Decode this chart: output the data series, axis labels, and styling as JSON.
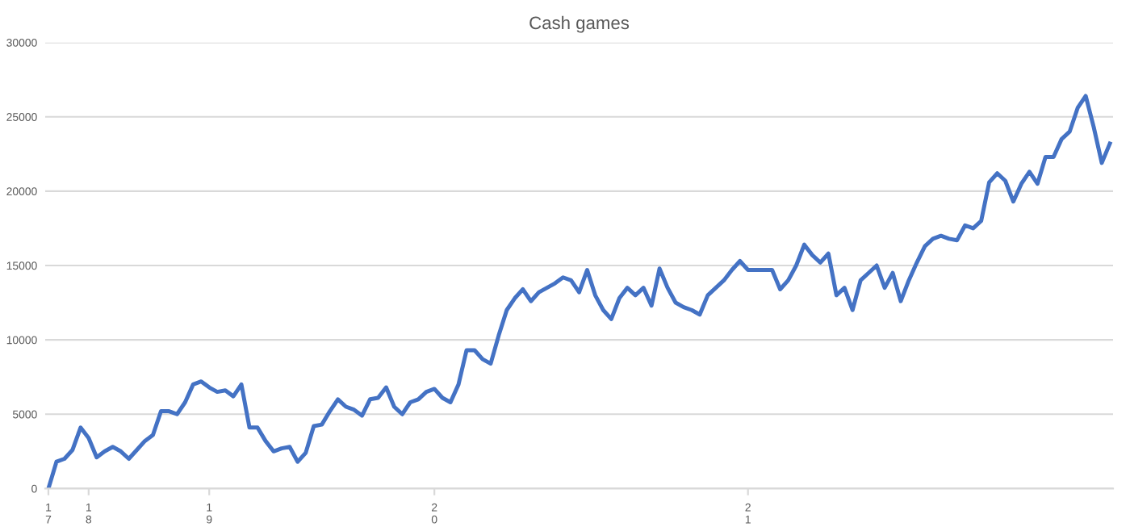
{
  "chart_data": {
    "type": "line",
    "title": "Cash games",
    "categories": [
      "17",
      null,
      null,
      null,
      null,
      "18",
      null,
      null,
      null,
      null,
      null,
      null,
      null,
      null,
      null,
      null,
      null,
      null,
      null,
      null,
      "19",
      null,
      null,
      null,
      null,
      null,
      null,
      null,
      null,
      null,
      null,
      null,
      null,
      null,
      null,
      null,
      null,
      null,
      null,
      null,
      null,
      null,
      null,
      null,
      null,
      null,
      null,
      null,
      "20",
      null,
      null,
      null,
      null,
      null,
      null,
      null,
      null,
      null,
      null,
      null,
      null,
      null,
      null,
      null,
      null,
      null,
      null,
      null,
      null,
      null,
      null,
      null,
      null,
      null,
      null,
      null,
      null,
      null,
      null,
      null,
      null,
      null,
      null,
      null,
      null,
      null,
      null,
      "21",
      null,
      null,
      null,
      null,
      null,
      null,
      null,
      null,
      null,
      null,
      null,
      null,
      null,
      null,
      null,
      null,
      null,
      null,
      null,
      null,
      null,
      null,
      null,
      null,
      null,
      null,
      null,
      null,
      null,
      null,
      null,
      null,
      null,
      null,
      null,
      null,
      null,
      null,
      null,
      null,
      null,
      null,
      null,
      null,
      null
    ],
    "series": [
      {
        "color": "#4472c4",
        "values": [
          0,
          1800,
          2000,
          2600,
          4100,
          3400,
          2100,
          2500,
          2800,
          2500,
          2000,
          2600,
          3200,
          3600,
          5200,
          5200,
          5000,
          5800,
          7000,
          7200,
          6800,
          6500,
          6600,
          6200,
          7000,
          4100,
          4100,
          3200,
          2500,
          2700,
          2800,
          1800,
          2400,
          4200,
          4300,
          5200,
          6000,
          5500,
          5300,
          4900,
          6000,
          6100,
          6800,
          5500,
          5000,
          5800,
          6000,
          6500,
          6700,
          6100,
          5800,
          7000,
          9300,
          9300,
          8700,
          8400,
          10300,
          12000,
          12800,
          13400,
          12600,
          13200,
          13500,
          13800,
          14200,
          14000,
          13200,
          14700,
          13000,
          12000,
          11400,
          12800,
          13500,
          13000,
          13500,
          12300,
          14800,
          13500,
          12500,
          12200,
          12000,
          11700,
          13000,
          13500,
          14000,
          14700,
          15300,
          14700,
          14700,
          14700,
          14700,
          13400,
          14000,
          15000,
          16400,
          15700,
          15200,
          15800,
          13000,
          13500,
          12000,
          14000,
          14500,
          15000,
          13500,
          14500,
          12600,
          14000,
          15200,
          16300,
          16800,
          17000,
          16800,
          16700,
          17700,
          17500,
          18000,
          20600,
          21200,
          20700,
          19300,
          20500,
          21300,
          20500,
          22300,
          22300,
          23500,
          24000,
          25600,
          26400,
          24300,
          21900,
          23200
        ]
      }
    ],
    "ylim": [
      0,
      30000
    ],
    "yticks": [
      0,
      5000,
      10000,
      15000,
      20000,
      25000,
      30000
    ],
    "grid": "y",
    "legend": false,
    "marker": "none",
    "line_style": "solid"
  }
}
